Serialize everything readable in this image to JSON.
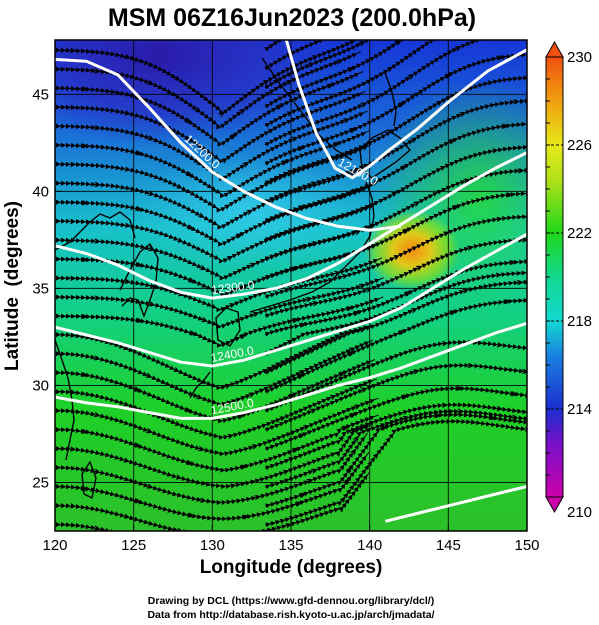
{
  "title": "MSM 06Z16Jun2023 (200.0hPa)",
  "chart_data": {
    "type": "map",
    "xlabel": "Longitude (degrees)",
    "ylabel": "Latitude  (degrees)",
    "xlim": [
      120,
      150
    ],
    "ylim": [
      22.5,
      47.8
    ],
    "x_ticks": [
      120,
      125,
      130,
      135,
      140,
      145,
      150
    ],
    "y_ticks": [
      25,
      30,
      35,
      40,
      45
    ],
    "grid": true,
    "field": "temperature shading with streamlines and white height contours",
    "colorbar": {
      "min": 210,
      "max": 230,
      "tick_values": [
        210,
        214,
        218,
        222,
        226,
        230
      ],
      "colors": [
        "#cc00aa",
        "#1a2fd0",
        "#12d8d0",
        "#1fd81a",
        "#e8e81a",
        "#f05010"
      ]
    },
    "contours": [
      {
        "label": "12200.0",
        "points": [
          [
            120,
            46.8
          ],
          [
            122,
            46.7
          ],
          [
            124,
            46.0
          ],
          [
            126,
            44.3
          ],
          [
            128,
            42.5
          ],
          [
            130,
            41.0
          ],
          [
            132,
            40.0
          ],
          [
            134,
            39.2
          ],
          [
            136,
            38.6
          ],
          [
            138,
            38.2
          ],
          [
            140,
            38.0
          ],
          [
            142,
            38.2
          ]
        ]
      },
      {
        "label": "12100.0",
        "points": [
          [
            134.7,
            47.8
          ],
          [
            135.5,
            45.5
          ],
          [
            136.6,
            43.0
          ],
          [
            137.8,
            41.2
          ],
          [
            138.9,
            40.7
          ],
          [
            140.0,
            41.3
          ],
          [
            141.2,
            42.1
          ],
          [
            143,
            43.2
          ],
          [
            145,
            44.6
          ],
          [
            147.5,
            46.2
          ],
          [
            150,
            47.3
          ]
        ]
      },
      {
        "label": "12300.0",
        "points": [
          [
            120,
            37.2
          ],
          [
            122,
            36.8
          ],
          [
            124,
            36.2
          ],
          [
            126,
            35.4
          ],
          [
            128,
            34.8
          ],
          [
            130,
            34.5
          ],
          [
            132,
            34.7
          ],
          [
            134,
            35.0
          ],
          [
            136,
            35.5
          ],
          [
            138,
            36.3
          ],
          [
            140,
            37.3
          ],
          [
            142,
            38.3
          ],
          [
            144,
            39.3
          ],
          [
            146,
            40.3
          ],
          [
            148,
            41.2
          ],
          [
            150,
            42.0
          ]
        ]
      },
      {
        "label": "12400.0",
        "points": [
          [
            120,
            33.0
          ],
          [
            122,
            32.6
          ],
          [
            124,
            32.2
          ],
          [
            126,
            31.7
          ],
          [
            128,
            31.2
          ],
          [
            130,
            31.0
          ],
          [
            132,
            31.3
          ],
          [
            134,
            31.8
          ],
          [
            136,
            32.3
          ],
          [
            138,
            32.8
          ],
          [
            140,
            33.3
          ],
          [
            142,
            34.0
          ],
          [
            144,
            35.0
          ],
          [
            146,
            36.0
          ],
          [
            148,
            36.9
          ],
          [
            150,
            37.8
          ]
        ]
      },
      {
        "label": "12500.0",
        "points": [
          [
            120,
            29.4
          ],
          [
            122,
            29.1
          ],
          [
            124,
            28.9
          ],
          [
            126,
            28.6
          ],
          [
            128,
            28.3
          ],
          [
            130,
            28.3
          ],
          [
            132,
            28.6
          ],
          [
            134,
            29.0
          ],
          [
            136,
            29.5
          ],
          [
            138,
            30.0
          ],
          [
            140,
            30.4
          ],
          [
            142,
            30.9
          ],
          [
            144,
            31.5
          ],
          [
            146,
            32.1
          ],
          [
            148,
            32.7
          ],
          [
            150,
            33.2
          ]
        ]
      },
      {
        "label": "",
        "points": [
          [
            141,
            23.0
          ],
          [
            143,
            23.4
          ],
          [
            145,
            23.8
          ],
          [
            147,
            24.2
          ],
          [
            150,
            24.8
          ]
        ]
      }
    ]
  },
  "credits": [
    "Drawing by DCL (https://www.gfd-dennou.org/library/dcl/)",
    "Data from http://database.rish.kyoto-u.ac.jp/arch/jmadata/"
  ]
}
